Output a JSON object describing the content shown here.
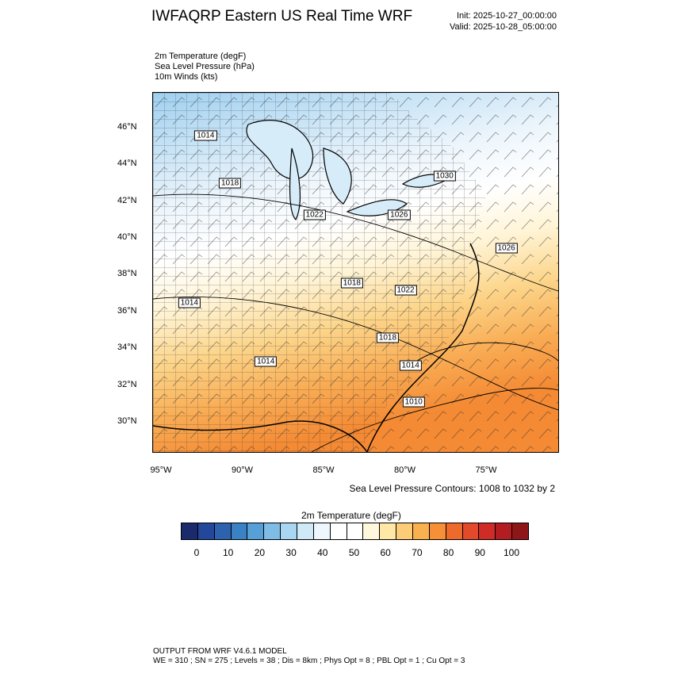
{
  "header": {
    "title": "IWFAQRP Eastern US Real Time WRF",
    "init": "Init: 2025-10-27_00:00:00",
    "valid": "Valid: 2025-10-28_05:00:00"
  },
  "fields": [
    "2m Temperature   (degF)",
    "Sea Level Pressure   (hPa)",
    "10m Winds   (kts)"
  ],
  "axes": {
    "lat": {
      "labels": [
        "46°N",
        "44°N",
        "42°N",
        "40°N",
        "38°N",
        "36°N",
        "34°N",
        "32°N",
        "30°N"
      ],
      "values": [
        46,
        44,
        42,
        40,
        38,
        36,
        34,
        32,
        30
      ]
    },
    "lon": {
      "labels": [
        "95°W",
        "90°W",
        "85°W",
        "80°W",
        "75°W"
      ],
      "values": [
        -95,
        -90,
        -85,
        -80,
        -75
      ]
    }
  },
  "slp_contours": {
    "note": "Sea Level Pressure Contours: 1008 to 1032 by 2",
    "labels": [
      {
        "text": "1014",
        "lon": -92.3,
        "lat": 45.6
      },
      {
        "text": "1018",
        "lon": -90.8,
        "lat": 43.0
      },
      {
        "text": "1022",
        "lon": -85.6,
        "lat": 41.3
      },
      {
        "text": "1026",
        "lon": -80.4,
        "lat": 41.3
      },
      {
        "text": "1030",
        "lon": -77.6,
        "lat": 43.4
      },
      {
        "text": "1026",
        "lon": -73.8,
        "lat": 39.5
      },
      {
        "text": "1018",
        "lon": -83.3,
        "lat": 37.6
      },
      {
        "text": "1022",
        "lon": -80.0,
        "lat": 37.2
      },
      {
        "text": "1014",
        "lon": -93.3,
        "lat": 36.5
      },
      {
        "text": "1018",
        "lon": -81.1,
        "lat": 34.6
      },
      {
        "text": "1014",
        "lon": -88.6,
        "lat": 33.3
      },
      {
        "text": "1014",
        "lon": -79.7,
        "lat": 33.1
      },
      {
        "text": "1010",
        "lon": -79.5,
        "lat": 31.1
      }
    ]
  },
  "colorbar": {
    "title": "2m Temperature  (degF)",
    "labels": [
      "0",
      "10",
      "20",
      "30",
      "40",
      "50",
      "60",
      "70",
      "80",
      "90",
      "100"
    ],
    "colors": [
      "#1b2a6b",
      "#23479a",
      "#2d62ae",
      "#3b82c4",
      "#56a0d7",
      "#7fbde6",
      "#a9d7f2",
      "#d0e9f8",
      "#eef7fd",
      "#ffffff",
      "#ffffff",
      "#fff8dc",
      "#ffe7a6",
      "#fccd76",
      "#f9b04f",
      "#f68f35",
      "#ee6a2c",
      "#e34a2a",
      "#cf2b27",
      "#b31d22",
      "#8e1618"
    ]
  },
  "footer": {
    "model": "OUTPUT FROM WRF V4.6.1 MODEL",
    "params": "WE = 310 ; SN = 275 ; Levels = 38 ; Dis = 8km ; Phys Opt = 8 ; PBL Opt = 1 ; Cu Opt = 3"
  }
}
